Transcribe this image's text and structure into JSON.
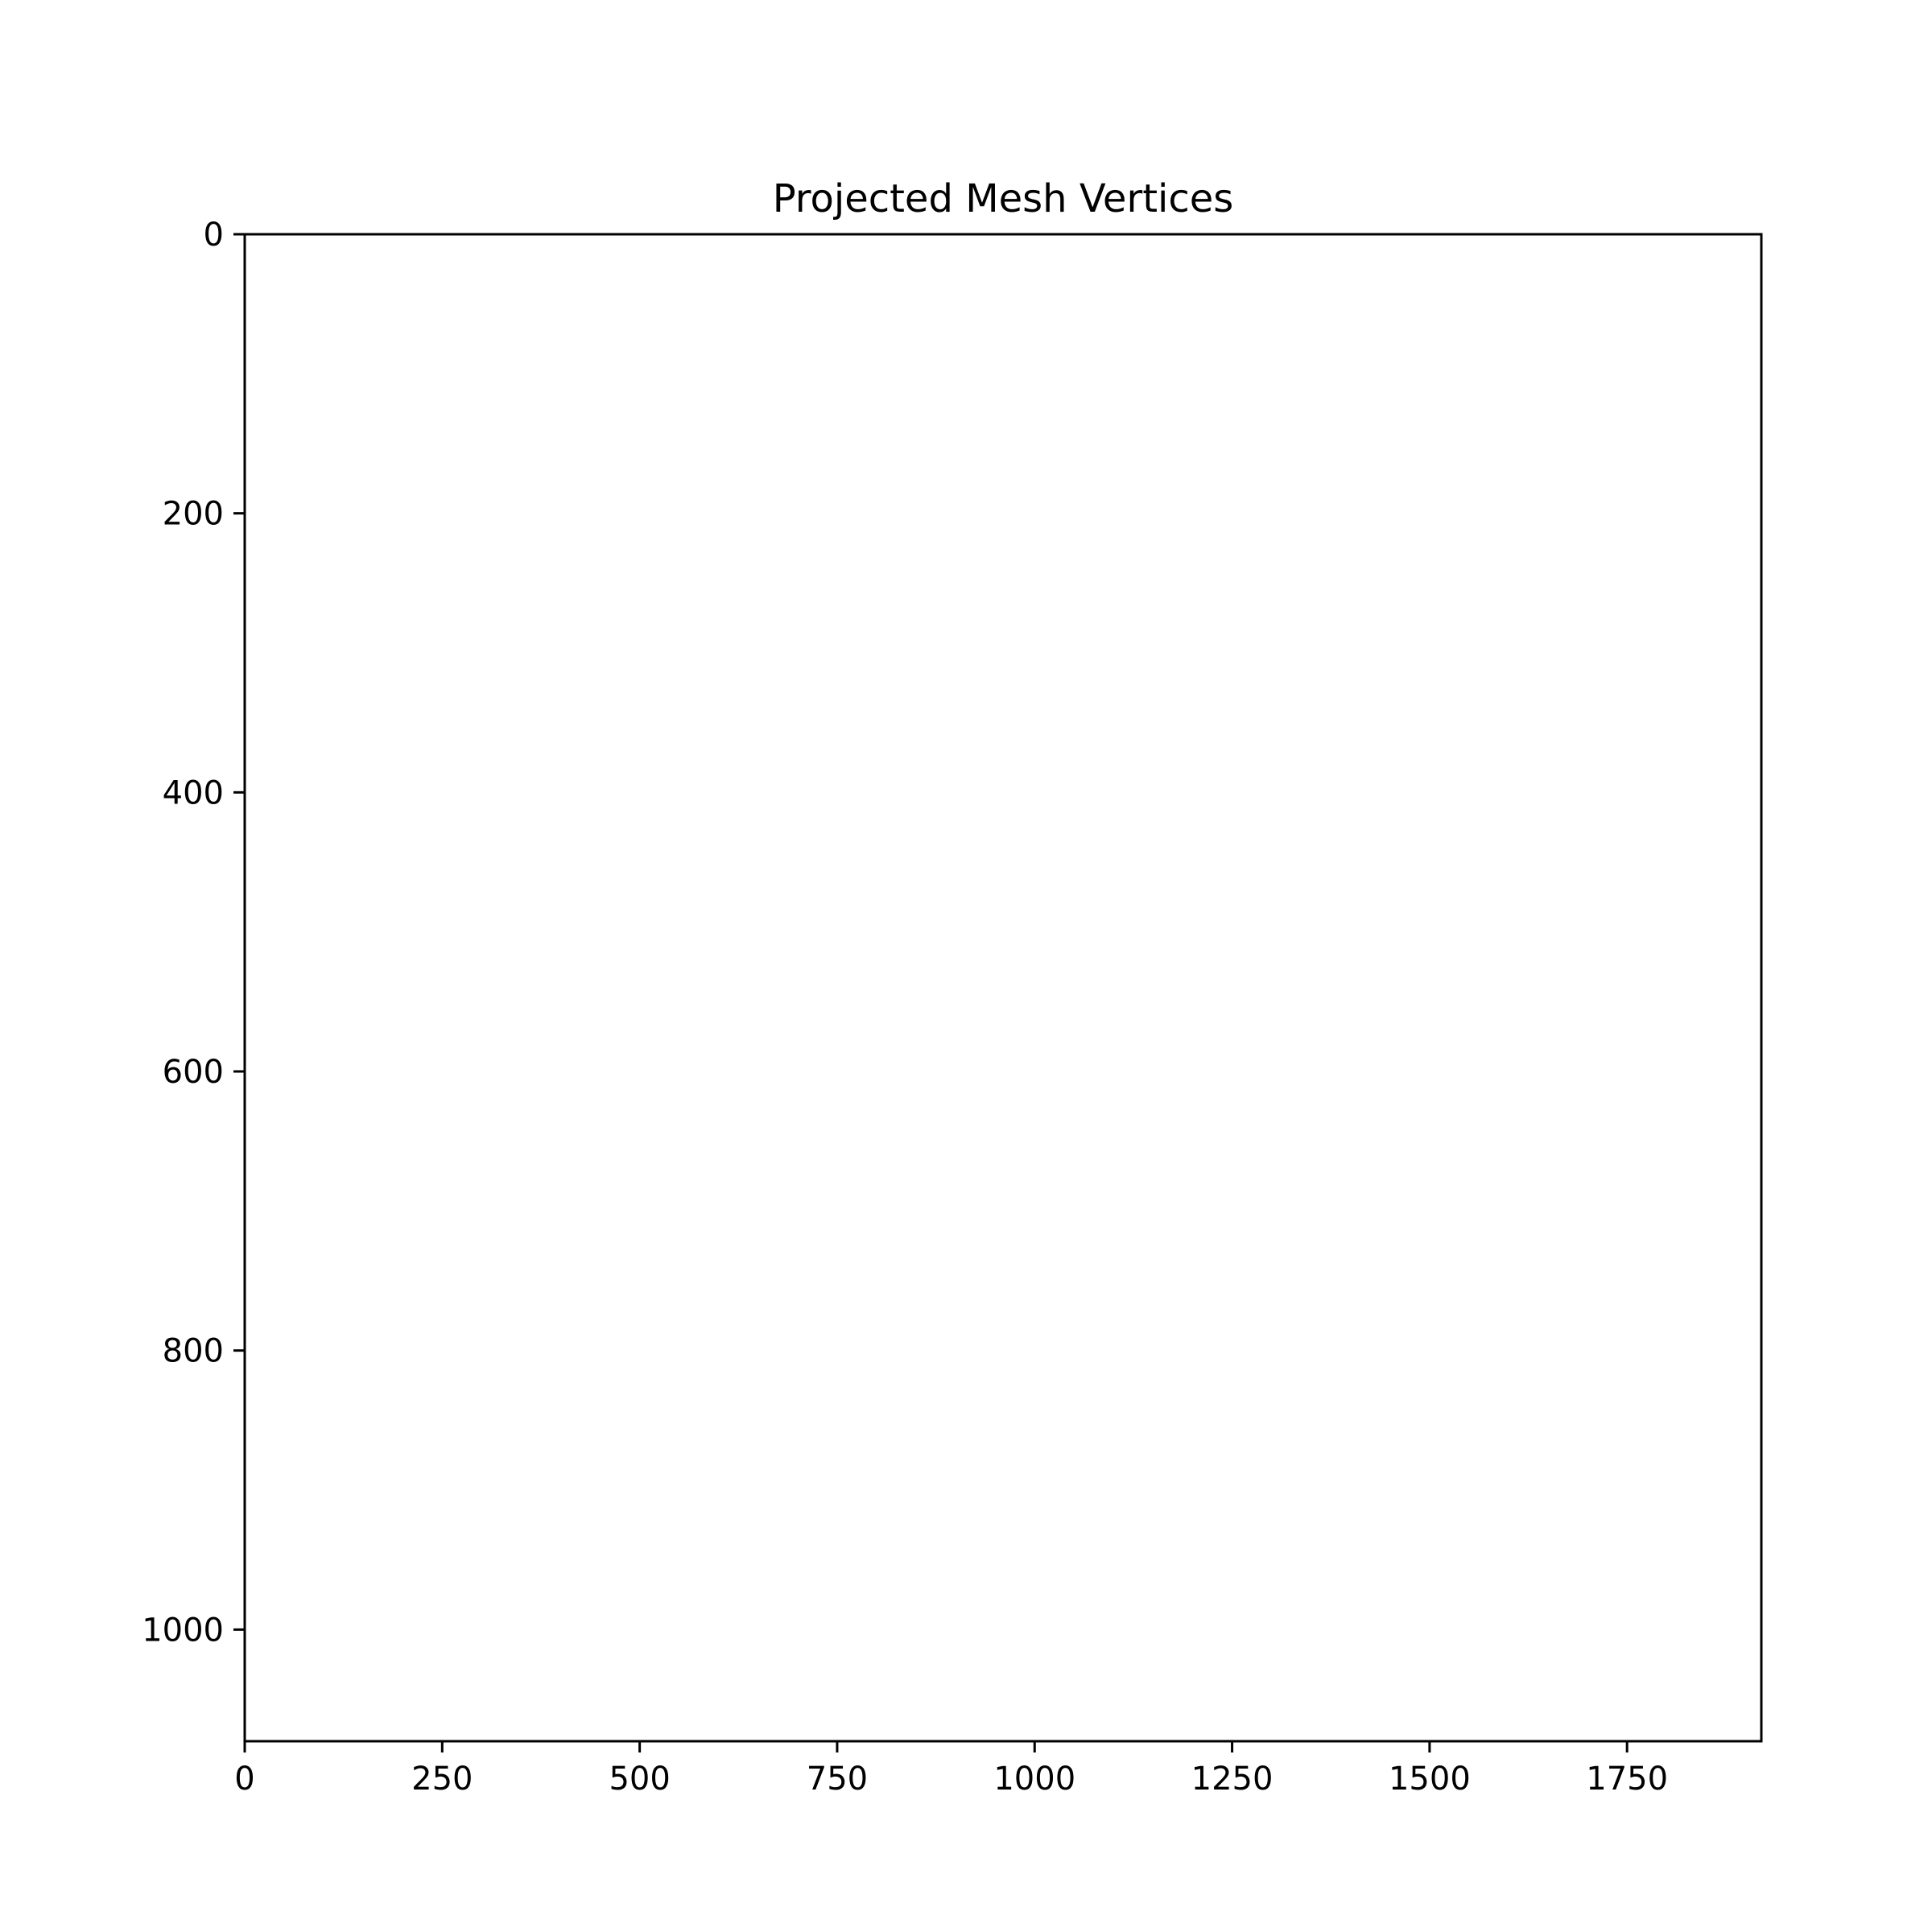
{
  "chart_data": {
    "type": "scatter",
    "title": "Projected Mesh Vertices",
    "xlabel": "",
    "ylabel": "",
    "xlim": [
      0,
      1920
    ],
    "ylim": [
      1080,
      0
    ],
    "y_inverted": true,
    "xticks": [
      0,
      250,
      500,
      750,
      1000,
      1250,
      1500,
      1750
    ],
    "xtick_labels": [
      "0",
      "250",
      "500",
      "750",
      "1000",
      "1250",
      "1500",
      "1750"
    ],
    "yticks": [
      0,
      200,
      400,
      600,
      800,
      1000
    ],
    "ytick_labels": [
      "0",
      "200",
      "400",
      "600",
      "800",
      "1000"
    ],
    "grid": false,
    "series": [],
    "colors": {
      "axes": "#000000",
      "background": "#ffffff"
    }
  }
}
